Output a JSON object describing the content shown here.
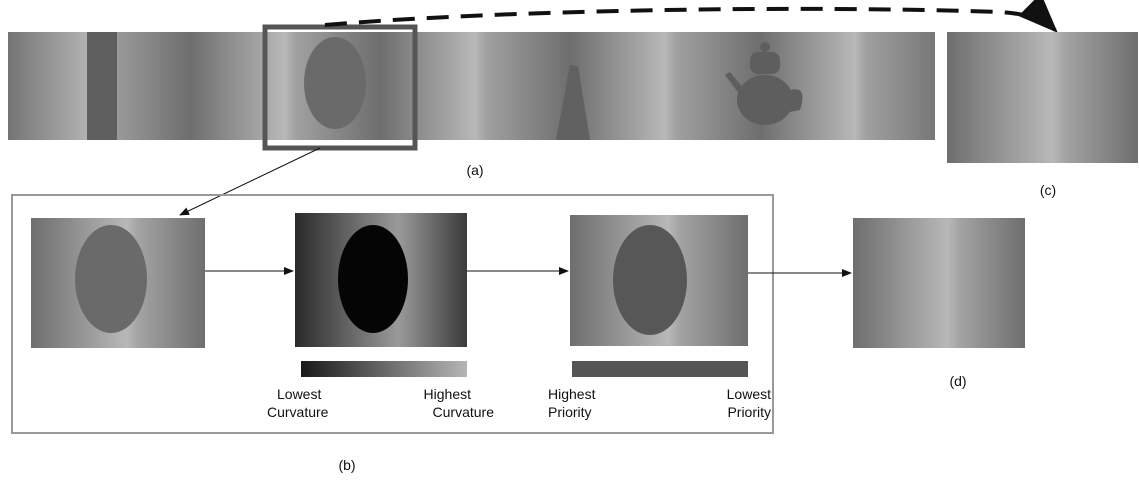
{
  "panels": [
    {
      "label": "(a)"
    },
    {
      "label": "(b)"
    },
    {
      "label": "(c)"
    },
    {
      "label": "(d)"
    }
  ],
  "legends": [
    {
      "left": [
        "Lowest",
        "Curvature"
      ],
      "right": [
        "Highest",
        "Curvature"
      ]
    },
    {
      "left": [
        "Highest",
        "Priority"
      ],
      "right": [
        "Lowest",
        "Priority"
      ]
    }
  ]
}
